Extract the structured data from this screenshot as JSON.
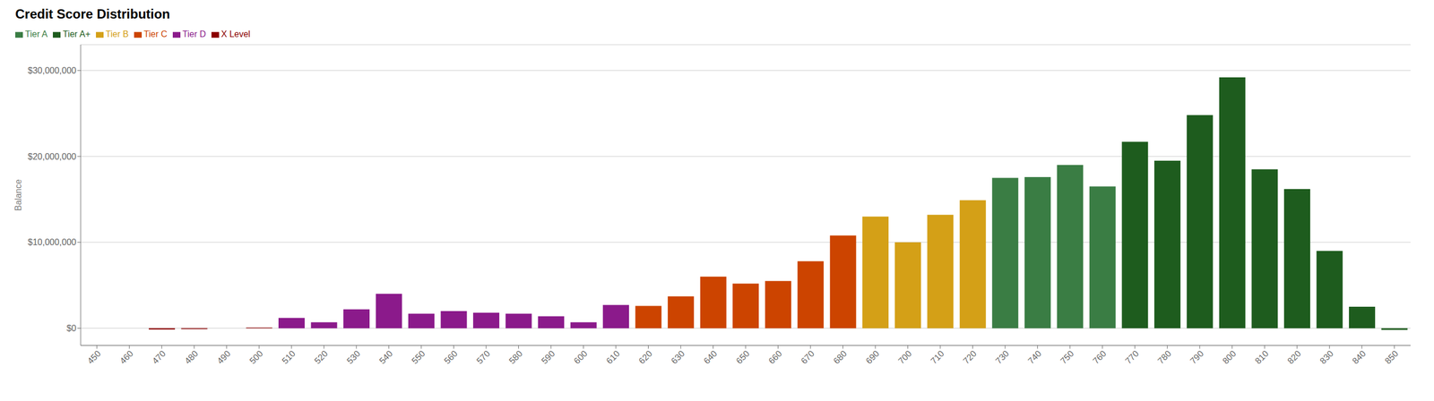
{
  "chart_data": {
    "type": "bar",
    "title": "Credit Score Distribution",
    "ylabel": "Balance",
    "categories": [
      450,
      460,
      470,
      480,
      490,
      500,
      510,
      520,
      530,
      540,
      550,
      560,
      570,
      580,
      590,
      600,
      610,
      620,
      630,
      640,
      650,
      660,
      670,
      680,
      690,
      700,
      710,
      720,
      730,
      740,
      750,
      760,
      770,
      780,
      790,
      800,
      810,
      820,
      830,
      840,
      850
    ],
    "series": [
      {
        "name": "X Level",
        "color": "#8B0000",
        "values": [
          0,
          0,
          -150000,
          -100000,
          0,
          80000,
          null,
          null,
          null,
          null,
          null,
          null,
          null,
          null,
          null,
          null,
          null,
          null,
          null,
          null,
          null,
          null,
          null,
          null,
          null,
          null,
          null,
          null,
          null,
          null,
          null,
          null,
          null,
          null,
          null,
          null,
          null,
          null,
          null,
          null,
          null
        ]
      },
      {
        "name": "Tier D",
        "color": "#8B1A8B",
        "values": [
          null,
          null,
          null,
          null,
          null,
          null,
          1200000,
          700000,
          2200000,
          4000000,
          1700000,
          2000000,
          1800000,
          1700000,
          1400000,
          700000,
          2700000,
          null,
          null,
          null,
          null,
          null,
          null,
          null,
          null,
          null,
          null,
          null,
          null,
          null,
          null,
          null,
          null,
          null,
          null,
          null,
          null,
          null,
          null,
          null,
          null
        ]
      },
      {
        "name": "Tier C",
        "color": "#CC4400",
        "values": [
          null,
          null,
          null,
          null,
          null,
          null,
          null,
          null,
          null,
          null,
          null,
          null,
          null,
          null,
          null,
          null,
          null,
          2600000,
          3700000,
          6000000,
          5200000,
          5500000,
          7800000,
          10800000,
          null,
          null,
          null,
          null,
          null,
          null,
          null,
          null,
          null,
          null,
          null,
          null,
          null,
          null,
          null,
          null,
          null
        ]
      },
      {
        "name": "Tier B",
        "color": "#D4A017",
        "values": [
          null,
          null,
          null,
          null,
          null,
          null,
          null,
          null,
          null,
          null,
          null,
          null,
          null,
          null,
          null,
          null,
          null,
          null,
          null,
          null,
          null,
          null,
          null,
          null,
          13000000,
          10000000,
          13200000,
          14900000,
          null,
          null,
          null,
          null,
          null,
          null,
          null,
          null,
          null,
          null,
          null,
          null,
          null
        ]
      },
      {
        "name": "Tier A",
        "color": "#3A7D44",
        "values": [
          null,
          null,
          null,
          null,
          null,
          null,
          null,
          null,
          null,
          null,
          null,
          null,
          null,
          null,
          null,
          null,
          null,
          null,
          null,
          null,
          null,
          null,
          null,
          null,
          null,
          null,
          null,
          null,
          17500000,
          17600000,
          19000000,
          16500000,
          null,
          null,
          null,
          null,
          null,
          null,
          null,
          null,
          null
        ]
      },
      {
        "name": "Tier A+",
        "color": "#1E5C1E",
        "values": [
          null,
          null,
          null,
          null,
          null,
          null,
          null,
          null,
          null,
          null,
          null,
          null,
          null,
          null,
          null,
          null,
          null,
          null,
          null,
          null,
          null,
          null,
          null,
          null,
          null,
          null,
          null,
          null,
          null,
          null,
          null,
          null,
          21700000,
          19500000,
          24800000,
          29200000,
          18500000,
          16200000,
          9000000,
          2500000,
          -200000
        ]
      }
    ],
    "ylim": [
      -2000000,
      33000000
    ],
    "yticks": [
      {
        "value": 0,
        "label": "$0"
      },
      {
        "value": 10000000,
        "label": "$10,000,000"
      },
      {
        "value": 20000000,
        "label": "$20,000,000"
      },
      {
        "value": 30000000,
        "label": "$30,000,000"
      }
    ],
    "grid": true,
    "legend": "top"
  }
}
